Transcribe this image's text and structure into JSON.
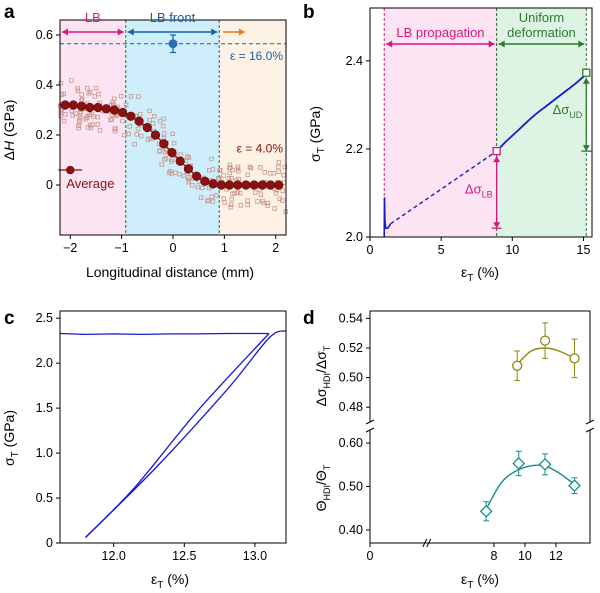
{
  "colors": {
    "pink_band": "#fce4f3",
    "blue_band": "#cdeefa",
    "orange_band": "#fdf2e3",
    "green_band": "#ddf4e4",
    "maroon": "#8b1010",
    "blue_marker": "#2a6fb5",
    "magenta": "#d6187e",
    "green_dark": "#2f7a2f",
    "curve_blue": "#1a1acc",
    "olive": "#8a8a14",
    "teal": "#1a8c8c",
    "orange_arrow": "#e07a20",
    "scatter": "#c9988e"
  },
  "chart_data": [
    {
      "panel": "a",
      "type": "scatter",
      "xlabel_pre": "Longitudinal distance (mm)",
      "ylabel_delta": "Δ",
      "ylabel_var": "H",
      "ylabel_unit": " (GPa)",
      "xlim": [
        -2.2,
        2.2
      ],
      "ylim": [
        -0.2,
        0.66
      ],
      "xticks": [
        "−2",
        "−1",
        "0",
        "1",
        "2"
      ],
      "xtick_values": [
        -2,
        -1,
        0,
        1,
        2
      ],
      "yticks": [
        "0",
        "0.2",
        "0.4",
        "0.6"
      ],
      "ytick_values": [
        0,
        0.2,
        0.4,
        0.6
      ],
      "regions": [
        {
          "label": "LB",
          "x0": -2.2,
          "x1": -0.92
        },
        {
          "label": "LB front",
          "x0": -0.92,
          "x1": 0.9
        },
        {
          "label": "",
          "x0": 0.9,
          "x1": 2.2
        }
      ],
      "dashed_level": 0.565,
      "dashed_level_label": "ε = 16.0%",
      "marker_point": {
        "x": 0.0,
        "y": 0.565,
        "err": 0.035
      },
      "average_label": "Average",
      "strain_label": "ε = 4.0%",
      "average": {
        "x": [
          -2.1,
          -1.94,
          -1.78,
          -1.62,
          -1.46,
          -1.3,
          -1.14,
          -0.98,
          -0.82,
          -0.66,
          -0.5,
          -0.34,
          -0.18,
          -0.02,
          0.14,
          0.3,
          0.46,
          0.62,
          0.78,
          0.94,
          1.1,
          1.26,
          1.42,
          1.58,
          1.74,
          1.9,
          2.06
        ],
        "y": [
          0.32,
          0.32,
          0.315,
          0.31,
          0.31,
          0.305,
          0.3,
          0.29,
          0.275,
          0.255,
          0.23,
          0.2,
          0.165,
          0.13,
          0.095,
          0.065,
          0.035,
          0.015,
          0.005,
          0.0,
          0.0,
          0.0,
          0.0,
          0.0,
          0.0,
          0.0,
          0.0
        ]
      }
    },
    {
      "panel": "b",
      "type": "line",
      "xlabel": "ε",
      "xlabel_sub": "T",
      "xlabel_unit": " (%)",
      "ylabel": "σ",
      "ylabel_sub": "T",
      "ylabel_unit": " (GPa)",
      "xlim": [
        0,
        15.6
      ],
      "ylim": [
        2.0,
        2.52
      ],
      "xticks": [
        "0",
        "5",
        "10",
        "15"
      ],
      "xtick_values": [
        0,
        5,
        10,
        15
      ],
      "yticks": [
        "2.0",
        "2.2",
        "2.4"
      ],
      "ytick_values": [
        2.0,
        2.2,
        2.4
      ],
      "region_lb_label": "LB propagation",
      "region_ud_label_1": "Uniform",
      "region_ud_label_2": "deformation",
      "lb_x": [
        1.0,
        8.9
      ],
      "ud_x": [
        8.9,
        15.2
      ],
      "delta_lb_label": "Δσ",
      "delta_lb_sub": "LB",
      "delta_ud_label": "Δσ",
      "delta_ud_sub": "UD",
      "curve_initial": {
        "x": [
          1.0,
          1.02,
          1.05,
          1.1,
          1.25,
          1.45
        ],
        "y": [
          2.0,
          2.09,
          2.04,
          2.02,
          2.02,
          2.03
        ]
      },
      "curve_lb_dashed": {
        "x": [
          1.45,
          8.9
        ],
        "y": [
          2.03,
          2.195
        ]
      },
      "curve_ud": {
        "x": [
          8.9,
          9.5,
          10.5,
          11.5,
          12.5,
          13.5,
          14.5,
          15.2
        ],
        "y": [
          2.195,
          2.215,
          2.245,
          2.275,
          2.3,
          2.325,
          2.35,
          2.37
        ]
      },
      "point_lb": {
        "x": 8.9,
        "y": 2.195
      },
      "point_ud": {
        "x": 15.2,
        "y": 2.373
      },
      "lb_base": 2.02,
      "ud_base": 2.195
    },
    {
      "panel": "c",
      "type": "line",
      "xlabel": "ε",
      "xlabel_sub": "T",
      "xlabel_unit": " (%)",
      "ylabel": "σ",
      "ylabel_sub": "T",
      "ylabel_unit": " (GPa)",
      "xlim": [
        11.62,
        13.22
      ],
      "ylim": [
        0,
        2.58
      ],
      "xticks": [
        "12.0",
        "12.5",
        "13.0"
      ],
      "xtick_values": [
        12.0,
        12.5,
        13.0
      ],
      "yticks": [
        "0",
        "0.5",
        "1.0",
        "1.5",
        "2.0",
        "2.5"
      ],
      "ytick_values": [
        0,
        0.5,
        1.0,
        1.5,
        2.0,
        2.5
      ],
      "plateau": {
        "x": [
          11.62,
          11.8,
          12.0,
          12.2,
          12.4,
          12.6,
          12.8,
          13.0,
          13.1
        ],
        "y": [
          2.33,
          2.32,
          2.325,
          2.32,
          2.325,
          2.325,
          2.33,
          2.33,
          2.33
        ]
      },
      "unload": {
        "x": [
          13.1,
          12.6,
          12.15,
          11.8
        ],
        "y": [
          2.33,
          1.48,
          0.62,
          0.06
        ]
      },
      "reload": {
        "x": [
          11.8,
          12.3,
          12.8,
          13.1,
          13.22
        ],
        "y": [
          0.06,
          0.84,
          1.7,
          2.28,
          2.36
        ]
      }
    },
    {
      "panel": "d_top",
      "type": "scatter",
      "ylabel_pre": "Δσ",
      "ylabel_sub1": "HDI",
      "ylabel_mid": "/Δσ",
      "ylabel_sub2": "T",
      "xlim": [
        0,
        14.2
      ],
      "ylim": [
        0.47,
        0.545
      ],
      "yticks": [
        "0.48",
        "0.50",
        "0.52",
        "0.54"
      ],
      "ytick_values": [
        0.48,
        0.5,
        0.52,
        0.54
      ],
      "points": {
        "x": [
          9.5,
          11.3,
          13.2
        ],
        "y": [
          0.508,
          0.525,
          0.513
        ],
        "err": [
          0.01,
          0.012,
          0.013
        ]
      },
      "fit": {
        "x": [
          9.5,
          10.4,
          11.3,
          12.2,
          13.2
        ],
        "y": [
          0.509,
          0.518,
          0.52,
          0.518,
          0.513
        ]
      }
    },
    {
      "panel": "d_bottom",
      "type": "scatter",
      "xlabel": "ε",
      "xlabel_sub": "T",
      "xlabel_unit": " (%)",
      "ylabel_pre": "Θ",
      "ylabel_sub1": "HDI",
      "ylabel_mid": "/Θ",
      "ylabel_sub2": "T",
      "xlim": [
        0,
        14.2
      ],
      "ylim": [
        0.37,
        0.63
      ],
      "xticks": [
        "0",
        "8",
        "10",
        "12"
      ],
      "xtick_values": [
        0,
        8,
        10,
        12
      ],
      "yticks": [
        "0.40",
        "0.50",
        "0.60"
      ],
      "ytick_values": [
        0.4,
        0.5,
        0.6
      ],
      "points": {
        "x": [
          7.5,
          9.6,
          11.3,
          13.2
        ],
        "y": [
          0.443,
          0.553,
          0.551,
          0.502
        ],
        "err": [
          0.022,
          0.028,
          0.024,
          0.018
        ]
      },
      "fit": {
        "x": [
          7.5,
          8.5,
          9.5,
          10.5,
          11.3,
          12.2,
          13.2
        ],
        "y": [
          0.448,
          0.51,
          0.537,
          0.548,
          0.547,
          0.531,
          0.505
        ]
      }
    }
  ],
  "panel_labels": [
    "a",
    "b",
    "c",
    "d"
  ]
}
